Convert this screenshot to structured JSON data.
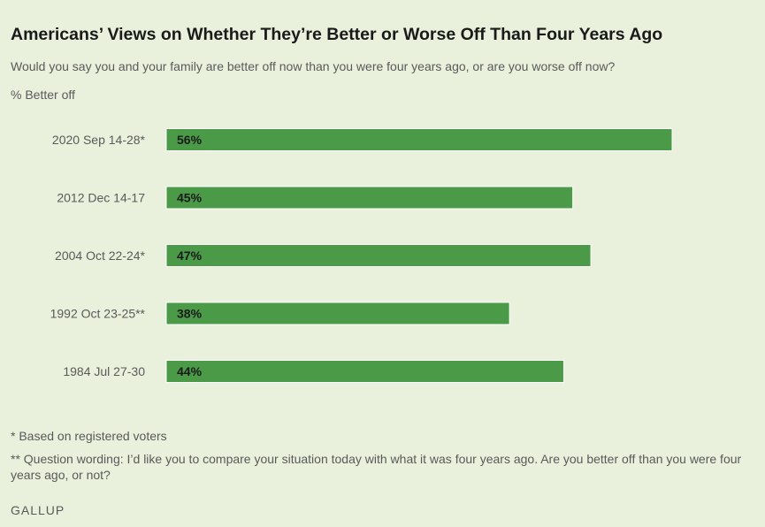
{
  "header": {
    "title": "Americans’ Views on Whether They’re Better or Worse Off Than Four Years Ago",
    "subtitle": "Would you say you and your family are better off now than you were four years ago, or are you worse off now?",
    "measure": "% Better off"
  },
  "chart_data": {
    "type": "bar",
    "orientation": "horizontal",
    "categories": [
      "2020 Sep 14-28*",
      "2012 Dec 14-17",
      "2004 Oct 22-24*",
      "1992 Oct 23-25**",
      "1984 Jul 27-30"
    ],
    "values": [
      56,
      45,
      47,
      38,
      44
    ],
    "value_labels": [
      "56%",
      "45%",
      "47%",
      "38%",
      "44%"
    ],
    "ylabel": "% Better off",
    "xlim": [
      0,
      56
    ],
    "grid": false,
    "legend": "none",
    "bar_color": "#4a9a48"
  },
  "footnotes": {
    "note1": "* Based on registered voters",
    "note2": "** Question wording: I’d like you to compare your situation today with what it was four years ago. Are you better off than you were four years ago, or not?"
  },
  "source": "GALLUP"
}
